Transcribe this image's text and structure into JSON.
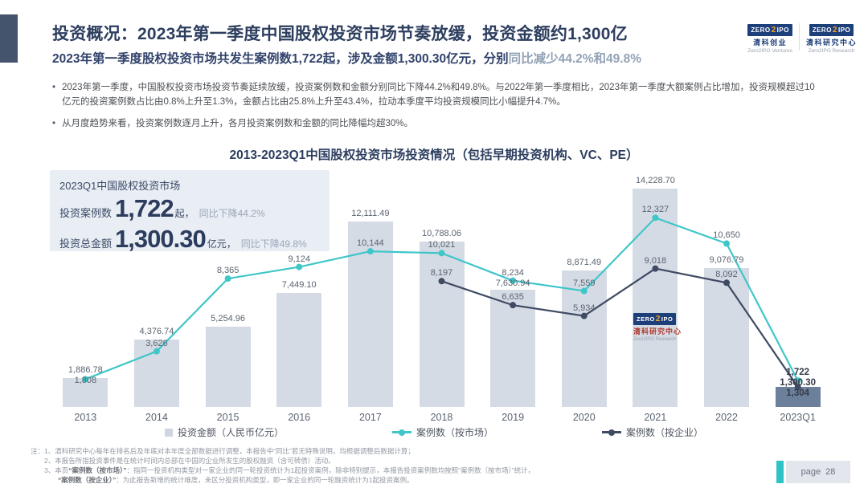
{
  "header": {
    "title": "投资概况：2023年第一季度中国股权投资市场节奏放缓，投资金额约1,300亿",
    "subtitle_main": "2023年第一季度股权投资市场共发生案例数1,722起，涉及金额1,300.30亿元，分别",
    "subtitle_highlight": "同比减少44.2%和49.8%",
    "logos": [
      {
        "badge_left": "ZERO",
        "badge_num": "2",
        "badge_right": "IPO",
        "cn": "清科创业",
        "en": "Zero2IPO Ventures"
      },
      {
        "badge_left": "ZERO",
        "badge_num": "2",
        "badge_right": "IPO",
        "cn": "清科研究中心",
        "en": "Zero2IPO Research"
      }
    ]
  },
  "bullets": [
    "2023年第一季度，中国股权投资市场投资节奏延续放缓，投资案例数和金额分别同比下降44.2%和49.8%。与2022年第一季度相比，2023年第一季度大额案例占比增加，投资规模超过10亿元的投资案例数占比由0.8%上升至1.3%，金额占比由25.8%上升至43.4%，拉动本季度平均投资规模同比小幅提升4.7%。",
    "从月度趋势来看，投资案例数逐月上升，各月投资案例数和金额的同比降幅均超30%。"
  ],
  "stat_panel": {
    "title": "2023Q1中国股权投资市场",
    "rows": [
      {
        "label": "投资案例数",
        "value": "1,722",
        "unit": "起，",
        "delta": "同比下降44.2%"
      },
      {
        "label": "投资总金额",
        "value": "1,300.30",
        "unit": "亿元，",
        "delta": "同比下降49.8%"
      }
    ]
  },
  "chart_data": {
    "type": "bar",
    "combo": "bar+line",
    "title": "2013-2023Q1中国股权投资市场投资情况（包括早期投资机构、VC、PE）",
    "categories": [
      "2013",
      "2014",
      "2015",
      "2016",
      "2017",
      "2018",
      "2019",
      "2020",
      "2021",
      "2022",
      "2023Q1"
    ],
    "series": [
      {
        "name": "投资金额（人民币亿元）",
        "type": "bar",
        "color": "#d5dbe4",
        "last_color": "#6c809b",
        "values": [
          1886.78,
          4376.74,
          5254.96,
          7449.1,
          12111.49,
          10788.06,
          7630.94,
          8871.49,
          14228.7,
          9076.79,
          1300.3
        ],
        "labels": [
          "1,886.78",
          "4,376.74",
          "5,254.96",
          "7,449.10",
          "12,111.49",
          "10,788.06",
          "7,630.94",
          "8,871.49",
          "14,228.70",
          "9,076.79",
          "1,300.30"
        ]
      },
      {
        "name": "案例数（按市场）",
        "type": "line",
        "color": "#3fc6c9",
        "values": [
          1808,
          3626,
          8365,
          9124,
          10144,
          10021,
          8234,
          7559,
          12327,
          10650,
          1722
        ],
        "labels": [
          "1,808",
          "3,626",
          "8,365",
          "9,124",
          "10,144",
          "10,021",
          "8,234",
          "7,559",
          "12,327",
          "10,650",
          "1,722"
        ]
      },
      {
        "name": "案例数（按企业）",
        "type": "line",
        "color": "#3f4a63",
        "values": [
          null,
          null,
          null,
          null,
          null,
          8197,
          6635,
          5934,
          9018,
          8092,
          1304
        ],
        "labels": [
          null,
          null,
          null,
          null,
          null,
          "8,197",
          "6,635",
          "5,934",
          "9,018",
          "8,092",
          "1,304"
        ]
      }
    ],
    "ylim": [
      0,
      15000
    ],
    "grid": false,
    "axes_hidden": true,
    "legend_position": "bottom"
  },
  "watermark": {
    "badge_left": "ZERO",
    "badge_num": "2",
    "badge_right": "IPO",
    "cn": "清科研究中心",
    "en": "Zero2IPO Research"
  },
  "notes": {
    "lines": [
      [
        {
          "t": "注：1、清科研究中心每年在排名后及年底对本年度全部数据进行调整，本报告中“同比”若无特殊说明，均根据调整后数据计算；"
        }
      ],
      [
        {
          "t": "2、本报告所指投资事件是在统计时间内总部在中国的企业所发生的股权融资（含可转债）活动。"
        }
      ],
      [
        {
          "t": "3、本页"
        },
        {
          "t": "“案例数（按市场）”",
          "b": true
        },
        {
          "t": "：指同一投资机构类型对一家企业的同一轮投资统计为1起投资案例，除非特别提示，本报告投资案例数均按照“案例数（按市场）”统计，"
        }
      ],
      [
        {
          "t": "“案例数（按企业）”",
          "b": true
        },
        {
          "t": "：为此报告新增的统计维度，未区分投资机构类型，即一家企业的同一轮融资统计为1起投资案例。"
        }
      ]
    ]
  },
  "page_badge": {
    "label": "page",
    "number": "28"
  }
}
